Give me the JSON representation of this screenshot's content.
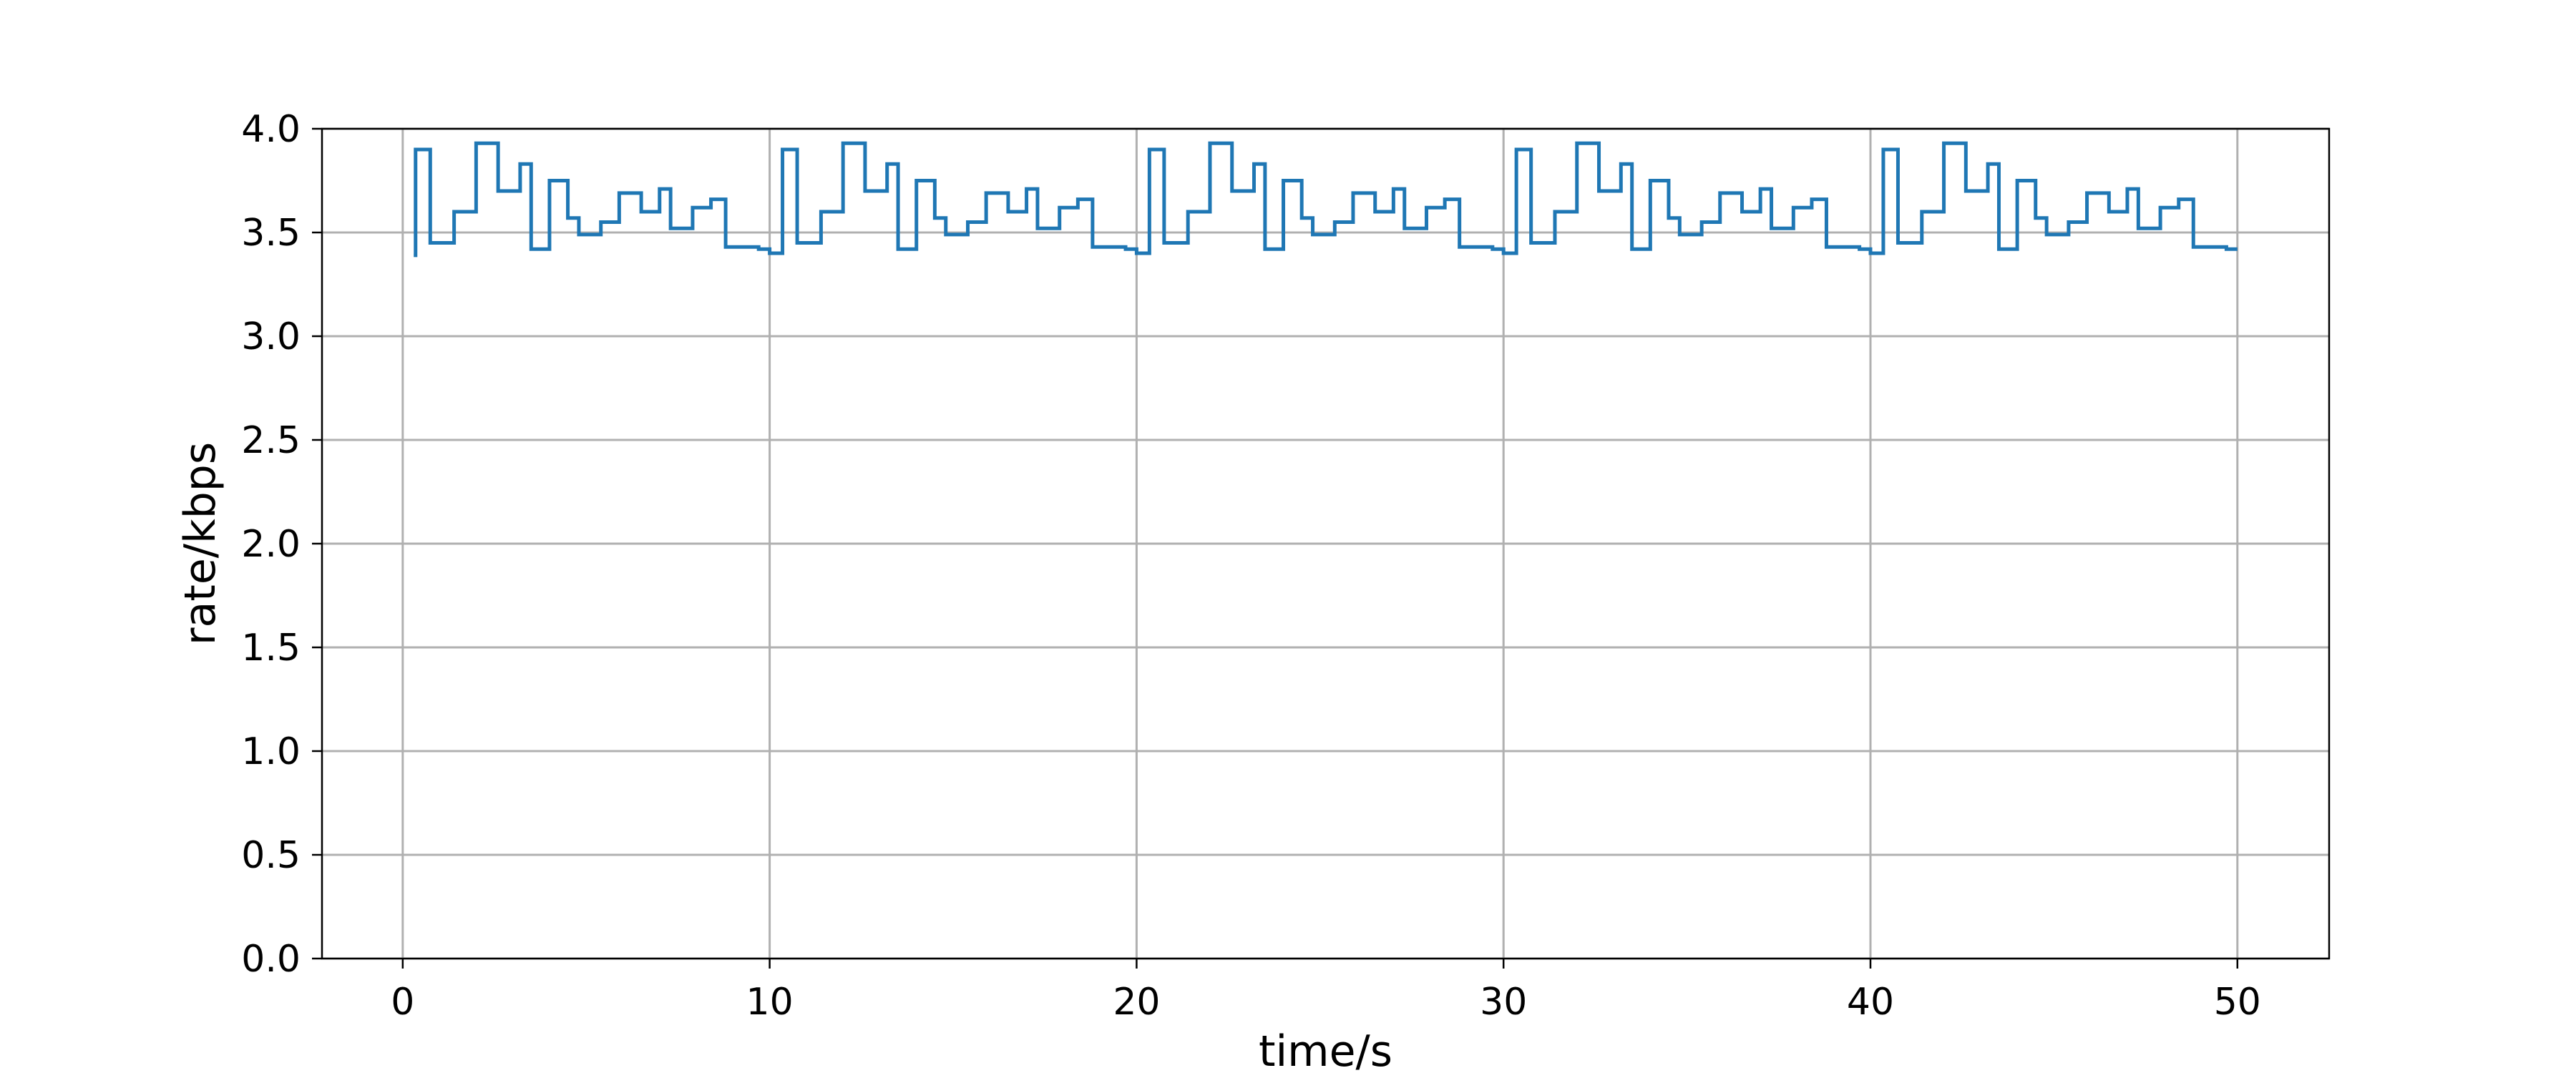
{
  "chart_data": {
    "type": "line",
    "title": "",
    "xlabel": "time/s",
    "ylabel": "rate/kbps",
    "xlim": [
      -2.2,
      52.5
    ],
    "ylim": [
      0.0,
      4.0
    ],
    "xticks": [
      0,
      10,
      20,
      30,
      40,
      50
    ],
    "xtick_labels": [
      "0",
      "10",
      "20",
      "30",
      "40",
      "50"
    ],
    "yticks": [
      0.0,
      0.5,
      1.0,
      1.5,
      2.0,
      2.5,
      3.0,
      3.5,
      4.0
    ],
    "ytick_labels": [
      "0.0",
      "0.5",
      "1.0",
      "1.5",
      "2.0",
      "2.5",
      "3.0",
      "3.5",
      "4.0"
    ],
    "grid": true,
    "legend": "none",
    "line_color": "#1f77b4",
    "step": "post",
    "series": [
      {
        "x": [
          0.3,
          0.35,
          0.75,
          1.4,
          2.0,
          2.6,
          3.2,
          3.5,
          4.0,
          4.5,
          4.8,
          5.4,
          5.9,
          6.5,
          7.0,
          7.3,
          7.9,
          8.4,
          8.8,
          9.5,
          9.7,
          10.0,
          10.35,
          10.75,
          11.4,
          12.0,
          12.6,
          13.2,
          13.5,
          14.0,
          14.5,
          14.8,
          15.4,
          15.9,
          16.5,
          17.0,
          17.3,
          17.9,
          18.4,
          18.8,
          19.5,
          19.7,
          20.0,
          20.35,
          20.75,
          21.4,
          22.0,
          22.6,
          23.2,
          23.5,
          24.0,
          24.5,
          24.8,
          25.4,
          25.9,
          26.5,
          27.0,
          27.3,
          27.9,
          28.4,
          28.8,
          29.5,
          29.7,
          30.0,
          30.35,
          30.75,
          31.4,
          32.0,
          32.6,
          33.2,
          33.5,
          34.0,
          34.5,
          34.8,
          35.4,
          35.9,
          36.5,
          37.0,
          37.3,
          37.9,
          38.4,
          38.8,
          39.5,
          39.7,
          40.0,
          40.35,
          40.75,
          41.4,
          42.0,
          42.6,
          43.2,
          43.5,
          44.0,
          44.5,
          44.8,
          45.4,
          45.9,
          46.5,
          47.0,
          47.3,
          47.9,
          48.4,
          48.8,
          49.5,
          49.7,
          50.0
        ],
        "y": [
          3.39,
          3.9,
          3.45,
          3.6,
          3.93,
          3.7,
          3.83,
          3.42,
          3.75,
          3.57,
          3.49,
          3.55,
          3.69,
          3.6,
          3.71,
          3.52,
          3.62,
          3.66,
          3.43,
          3.43,
          3.42,
          3.4,
          3.9,
          3.45,
          3.6,
          3.93,
          3.7,
          3.83,
          3.42,
          3.75,
          3.57,
          3.49,
          3.55,
          3.69,
          3.6,
          3.71,
          3.52,
          3.62,
          3.66,
          3.43,
          3.43,
          3.42,
          3.4,
          3.9,
          3.45,
          3.6,
          3.93,
          3.7,
          3.83,
          3.42,
          3.75,
          3.57,
          3.49,
          3.55,
          3.69,
          3.6,
          3.71,
          3.52,
          3.62,
          3.66,
          3.43,
          3.43,
          3.42,
          3.4,
          3.9,
          3.45,
          3.6,
          3.93,
          3.7,
          3.83,
          3.42,
          3.75,
          3.57,
          3.49,
          3.55,
          3.69,
          3.6,
          3.71,
          3.52,
          3.62,
          3.66,
          3.43,
          3.43,
          3.42,
          3.4,
          3.9,
          3.45,
          3.6,
          3.93,
          3.7,
          3.83,
          3.42,
          3.75,
          3.57,
          3.49,
          3.55,
          3.69,
          3.6,
          3.71,
          3.52,
          3.62,
          3.66,
          3.43,
          3.43,
          3.42,
          3.42
        ]
      }
    ]
  }
}
